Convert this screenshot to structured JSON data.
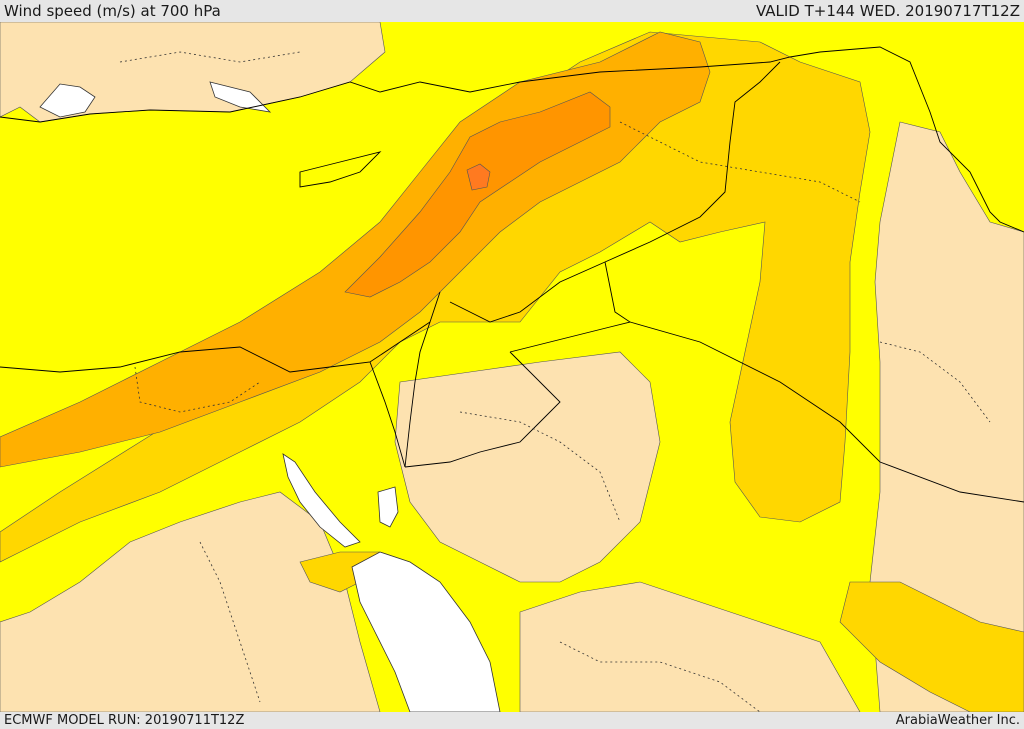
{
  "header": {
    "title": "Wind speed (m/s) at 700 hPa",
    "valid": "VALID T+144 WED. 20190717T12Z"
  },
  "footer": {
    "model_run": "ECMWF MODEL RUN: 20190711T12Z",
    "credit": "ArabiaWeather Inc."
  },
  "colors": {
    "background": "#e6e6e6",
    "calm": "#fde2b0",
    "low": "#ffff00",
    "moderate": "#ffd700",
    "fresh": "#ffb000",
    "strong": "#ff9500",
    "very_strong": "#ff7a20",
    "water": "#ffffff",
    "borders": "#000000"
  }
}
